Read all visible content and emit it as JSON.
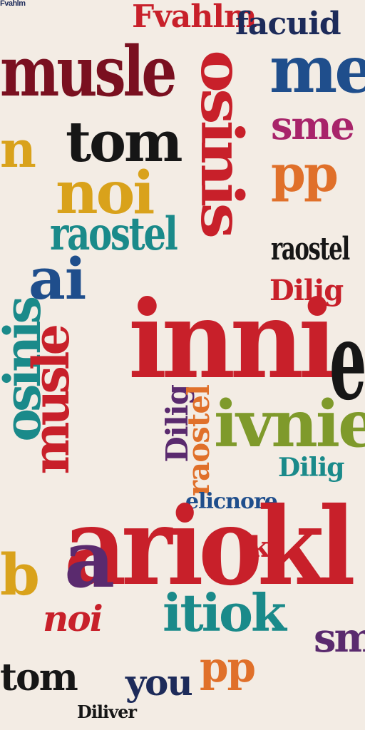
{
  "palette": {
    "red": "#c8202a",
    "dark_red": "#7a1020",
    "blue": "#1f4e8c",
    "navy": "#1d2b5a",
    "teal": "#1a8a8a",
    "yellow": "#d9a21b",
    "orange": "#e0702a",
    "green": "#7f9a2b",
    "magenta": "#a8246a",
    "purple": "#5a2a6e",
    "black": "#161616",
    "background": "#f3ece4"
  },
  "words": {
    "top_small": "Fvahlm",
    "faculd": "facuid",
    "musle": "musle",
    "me": "me",
    "vertical_osinis": "osinis",
    "sme": "sme",
    "tom": "tom",
    "noi": "noi",
    "raostel": "raostel",
    "inni": "inni",
    "ivnie": "ivnie",
    "ariokl": "ariokl",
    "itiok": "itiok",
    "you": "you",
    "tom_bottom": "tom",
    "big_e": "e",
    "ppi": "pp",
    "ubaolf": "elicnore",
    "bilier": "Diliver",
    "dilig": "Dilig"
  }
}
